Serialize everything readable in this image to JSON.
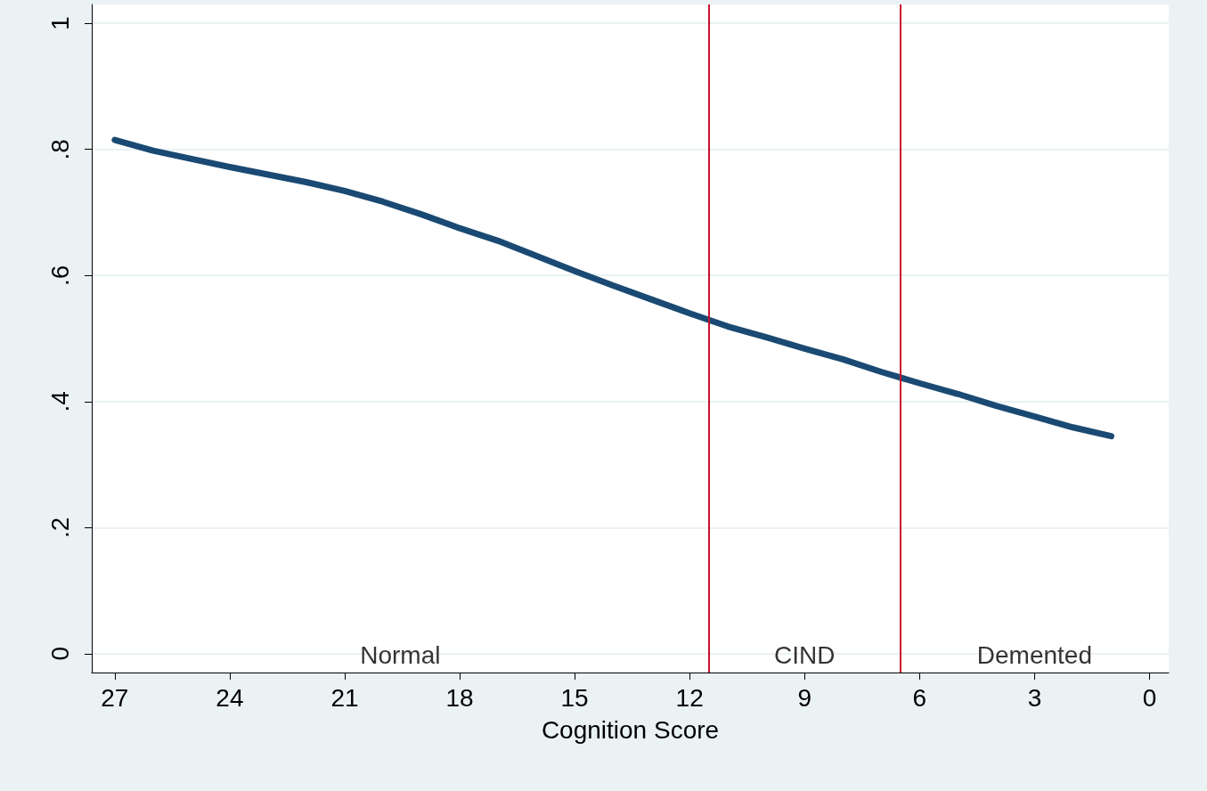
{
  "chart_data": {
    "type": "line",
    "xlabel": "Cognition Score",
    "x": [
      27,
      26,
      25,
      24,
      23,
      22,
      21,
      20,
      19,
      18,
      17,
      16,
      15,
      14,
      13,
      12,
      11,
      10,
      9,
      8,
      7,
      6,
      5,
      4,
      3,
      2,
      1
    ],
    "series": [
      {
        "color": "#1a4a73",
        "values": [
          0.815,
          0.798,
          0.785,
          0.772,
          0.76,
          0.748,
          0.734,
          0.717,
          0.697,
          0.675,
          0.655,
          0.631,
          0.607,
          0.584,
          0.562,
          0.54,
          0.519,
          0.502,
          0.484,
          0.467,
          0.447,
          0.429,
          0.412,
          0.393,
          0.376,
          0.359,
          0.345
        ]
      }
    ],
    "xlim": [
      27.6,
      -0.5
    ],
    "xticks": [
      27,
      24,
      21,
      18,
      15,
      12,
      9,
      6,
      3,
      0
    ],
    "ylim": [
      -0.03,
      1.03
    ],
    "yticks": [
      0,
      {
        "value": 0.2,
        "label": ".2"
      },
      {
        "value": 0.4,
        "label": ".4"
      },
      {
        "value": 0.6,
        "label": ".6"
      },
      {
        "value": 0.8,
        "label": ".8"
      },
      1
    ],
    "ref_lines": [
      {
        "axis": "x",
        "value": 11.5,
        "color": "#c8102e"
      },
      {
        "axis": "x",
        "value": 6.5,
        "color": "#c8102e"
      }
    ],
    "annotations": [
      "Normal",
      "CIND",
      "Demented"
    ],
    "grid": "y",
    "marker": "none",
    "line_style": "solid"
  }
}
